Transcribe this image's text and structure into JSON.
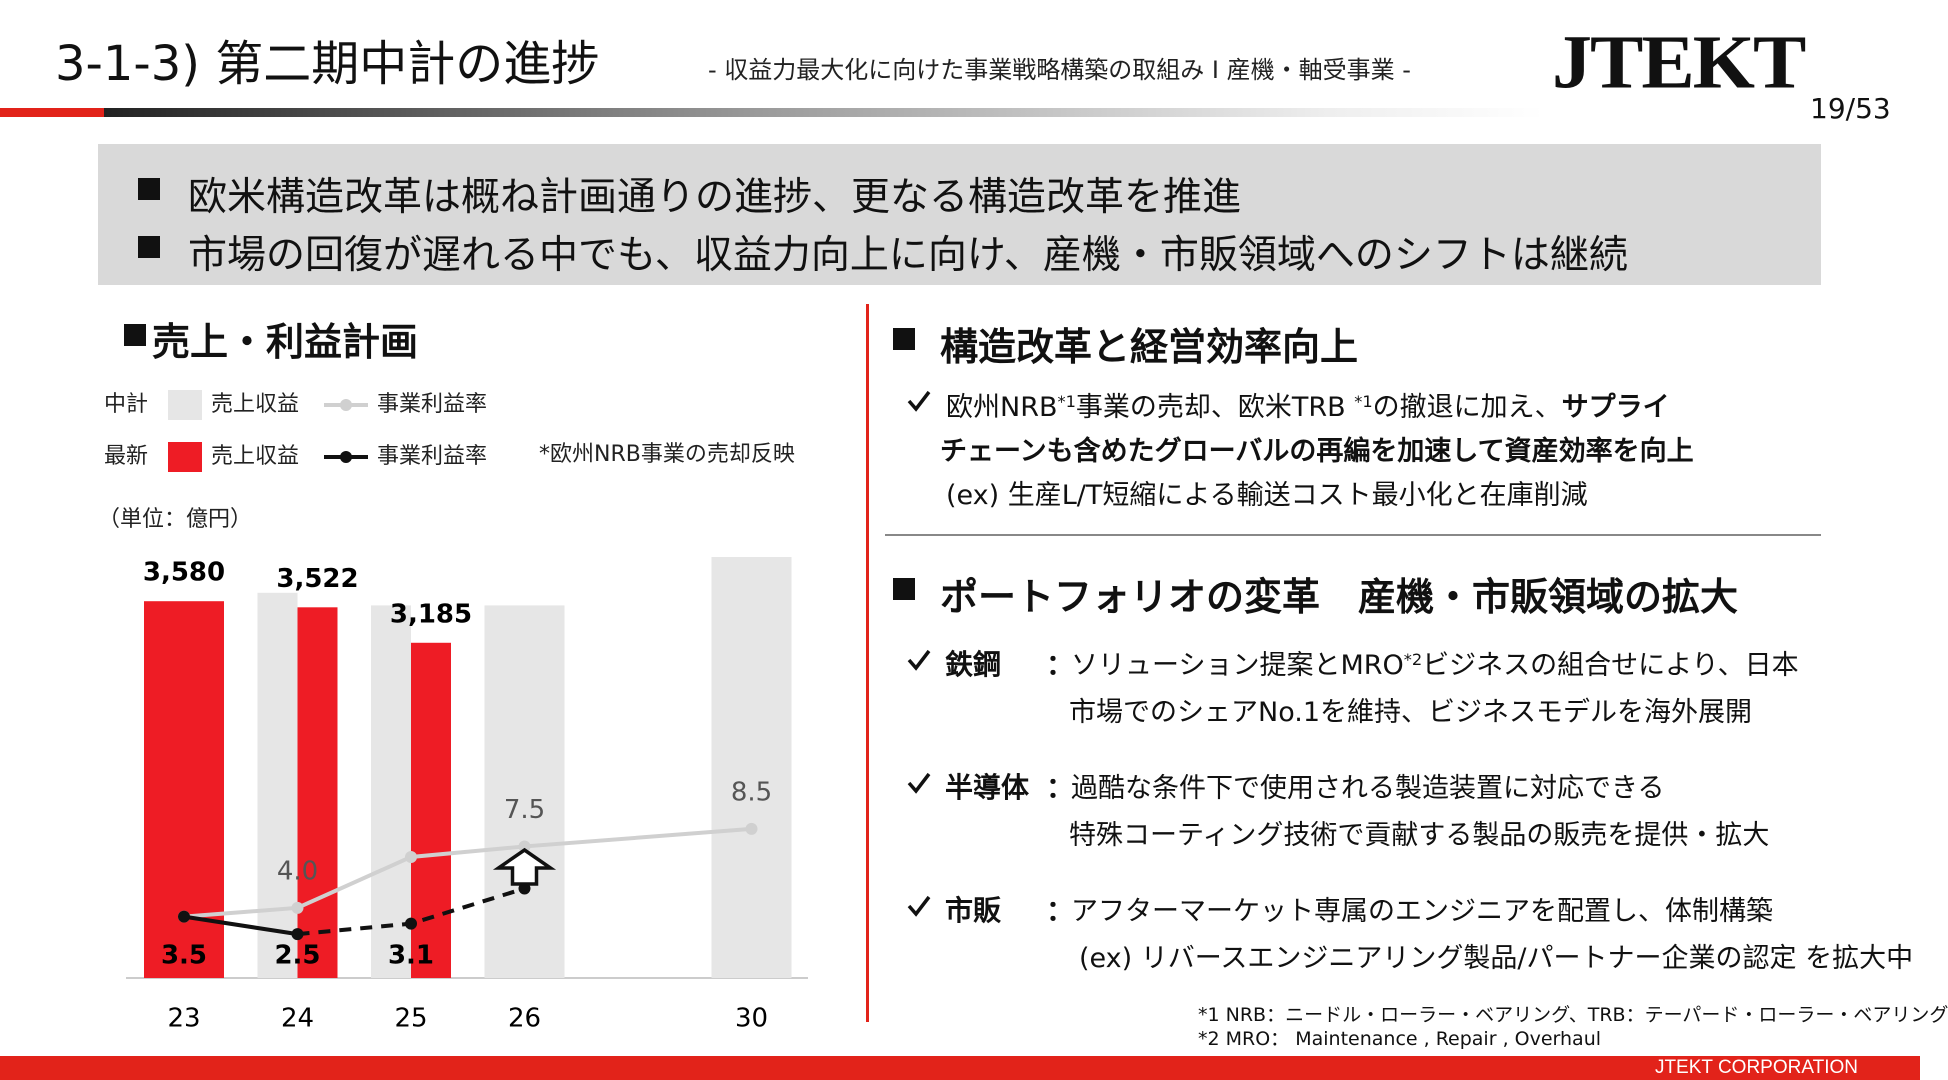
{
  "header": {
    "title": "3-1-3) 第二期中計の進捗",
    "subtitle": "- 収益力最大化に向けた事業戦略構築の取組み I 産機・軸受事業 -",
    "logo": "JTEKT",
    "page": "19/53"
  },
  "banner": {
    "bullets": [
      "欧米構造改革は概ね計画通りの進捗、更なる構造改革を推進",
      "市場の回復が遅れる中でも、収益力向上に向け、産機・市販領域へのシフトは継続"
    ]
  },
  "left": {
    "title": "売上・利益計画"
  },
  "chart_data": {
    "type": "bar-line",
    "unit": "（単位：億円）",
    "note": "*欧州NRB事業の売却反映",
    "categories": [
      "23",
      "24",
      "25",
      "26",
      "30"
    ],
    "ylim": [
      0,
      4000
    ],
    "y2lim": [
      0,
      24
    ],
    "series": [
      {
        "name": "売上収益",
        "group": "中計",
        "kind": "bar",
        "color": "#e6e6e6",
        "values": [
          null,
          3660,
          3540,
          3540,
          4000
        ]
      },
      {
        "name": "売上収益",
        "group": "最新",
        "kind": "bar",
        "color": "#ee1c25",
        "values": [
          3580,
          3522,
          3185,
          null,
          null
        ],
        "value_labels": [
          "3,580",
          "3,522",
          "3,185",
          null,
          null
        ]
      },
      {
        "name": "事業利益率",
        "group": "中計",
        "kind": "line",
        "axis": "y2",
        "color": "#d0d0d0",
        "values": [
          3.5,
          4.0,
          6.9,
          7.5,
          8.5
        ],
        "value_labels": [
          null,
          "4.0",
          null,
          "7.5",
          "8.5"
        ]
      },
      {
        "name": "事業利益率",
        "group": "最新",
        "kind": "line",
        "axis": "y2",
        "color": "#111111",
        "dashed_from": 1,
        "values": [
          3.5,
          2.5,
          3.1,
          5.1,
          null
        ]
      }
    ]
  },
  "right": {
    "sections": [
      {
        "title": "構造改革と経営効率向上",
        "items": [
          {
            "lines": [
              [
                {
                  "text": "欧州NRB"
                },
                {
                  "text": "*1",
                  "sup": true
                },
                {
                  "text": "事業の売却、欧米TRB "
                },
                {
                  "text": "*1",
                  "sup": true
                },
                {
                  "text": "の撤退に加え、"
                },
                {
                  "text": "サプライ",
                  "bold": true
                }
              ],
              [
                {
                  "text": "チェーンも含めたグローバルの再編を加速して資産効率を向上",
                  "bold": true
                }
              ],
              [
                {
                  "text": "(ex) 生産L/T短縮による輸送コスト最小化と在庫削減"
                }
              ]
            ]
          }
        ]
      },
      {
        "title": "ポートフォリオの変革　産機・市販領域の拡大",
        "separator": "：",
        "items": [
          {
            "label": "鉄鋼",
            "lines": [
              [
                {
                  "text": "ソリューション提案とMRO"
                },
                {
                  "text": "*2",
                  "sup": true
                },
                {
                  "text": "ビジネスの組合せにより、日本"
                }
              ],
              [
                {
                  "text": "市場でのシェアNo.1を維持、ビジネスモデルを海外展開"
                }
              ]
            ]
          },
          {
            "label": "半導体",
            "lines": [
              [
                {
                  "text": "過酷な条件下で使用される製造装置に対応できる"
                }
              ],
              [
                {
                  "text": "特殊コーティング技術で貢献する製品の販売を提供・拡大"
                }
              ]
            ]
          },
          {
            "label": "市販",
            "lines": [
              [
                {
                  "text": "アフターマーケット専属のエンジニアを配置し、体制構築"
                }
              ],
              [
                {
                  "text": "(ex) リバースエンジニアリング製品/パートナー企業の認定 を拡大中"
                }
              ]
            ]
          }
        ]
      }
    ]
  },
  "footnotes": [
    "*1 NRB：ニードル・ローラー・ベアリング、TRB：テーパード・ローラー・ベアリング",
    "*2 MRO： Maintenance , Repair , Overhaul"
  ],
  "footer": "JTEKT CORPORATION"
}
